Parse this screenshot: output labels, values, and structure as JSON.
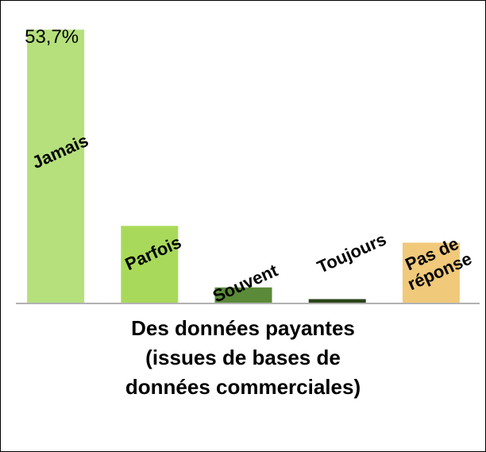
{
  "chart_data": {
    "type": "bar",
    "title": "Des données payantes\n(issues de bases de\ndonnées commerciales)",
    "categories": [
      "Jamais",
      "Parfois",
      "Souvent",
      "Toujours",
      "Pas de\nréponse"
    ],
    "values": [
      53.7,
      15.1,
      3.0,
      0.7,
      11.8
    ],
    "value_labels": [
      "53,7%",
      null,
      null,
      null,
      null
    ],
    "colors": [
      "#b5e07c",
      "#a9d95a",
      "#5b8a38",
      "#2b4519",
      "#f0c97a"
    ],
    "ylim": [
      0,
      55
    ]
  }
}
